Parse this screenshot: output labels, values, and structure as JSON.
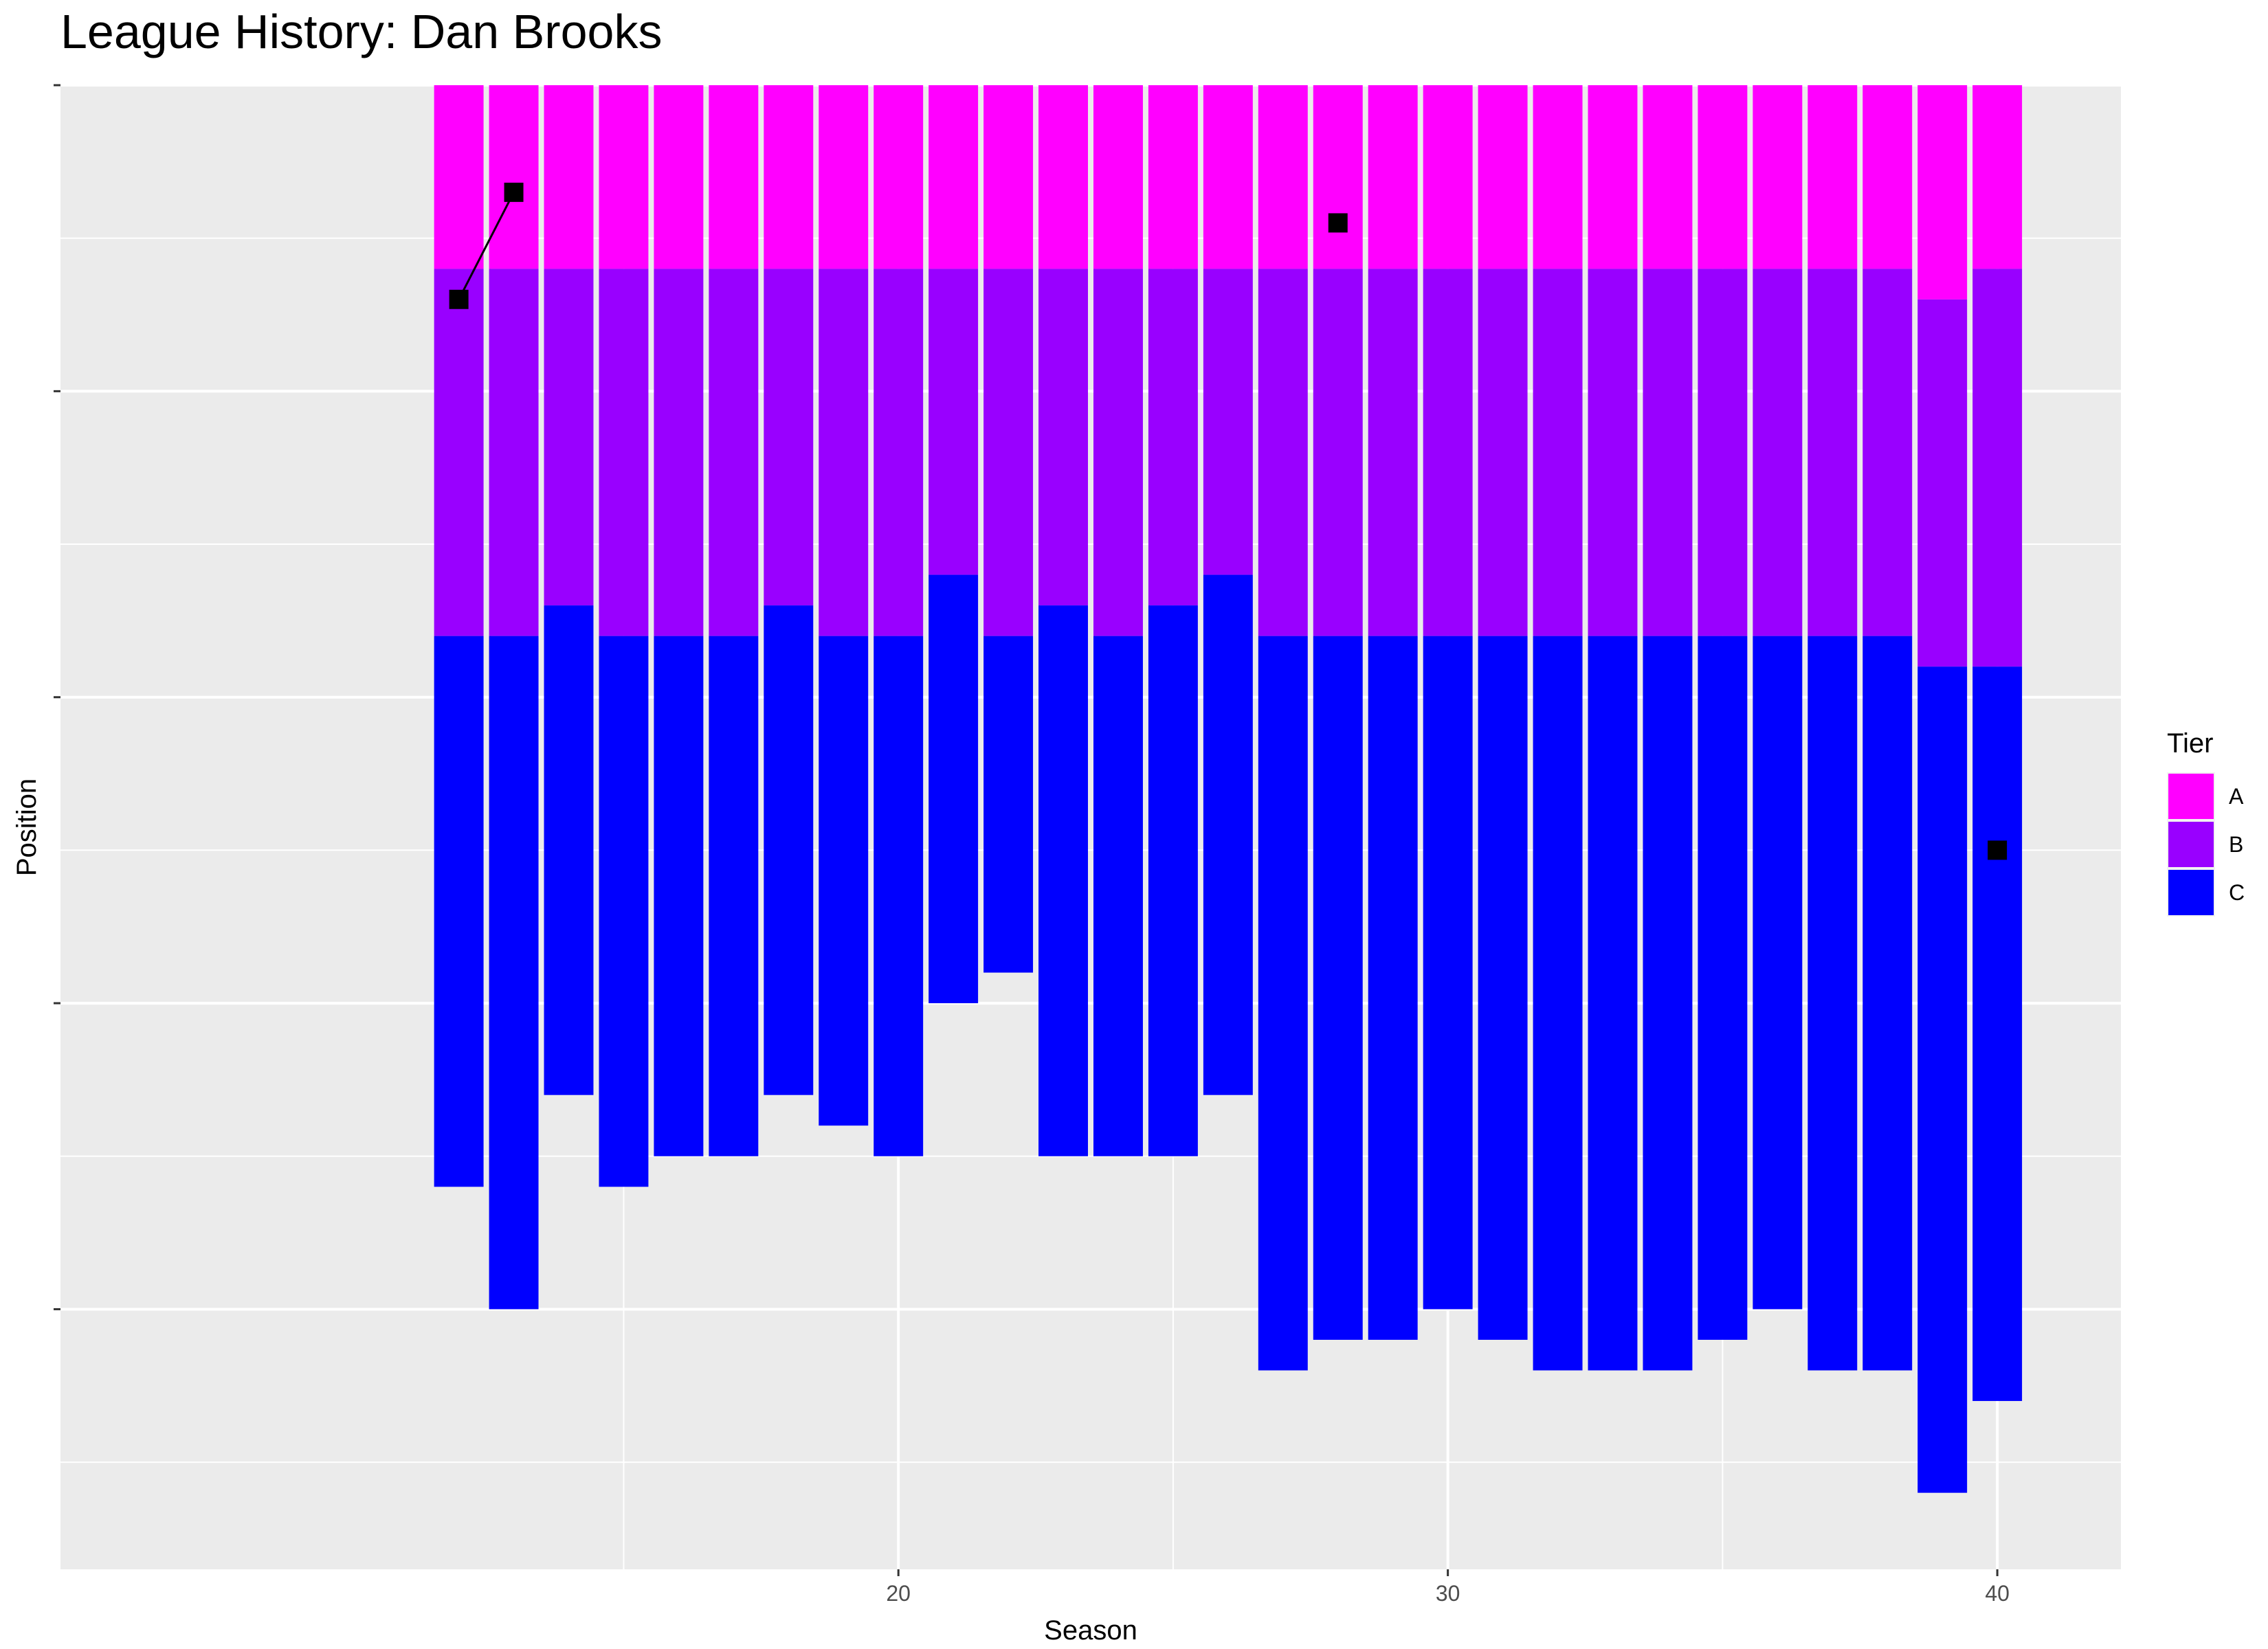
{
  "chart_data": {
    "type": "bar",
    "stacked": true,
    "title": "League History: Dan Brooks",
    "xlabel": "Season",
    "ylabel": "Position",
    "x_ticks": [
      20,
      30,
      40
    ],
    "xlim": [
      4.75,
      42.25
    ],
    "ylim": [
      0,
      48.5
    ],
    "y_reversed": true,
    "grid": true,
    "legend": {
      "title": "Tier",
      "position": "right",
      "entries": [
        "A",
        "B",
        "C"
      ]
    },
    "colors": {
      "A": "#ff00ff",
      "B": "#9900ff",
      "C": "#0000ff",
      "panel": "#ebebeb",
      "grid": "#ffffff",
      "marker": "#000000"
    },
    "seasons": [
      12,
      13,
      14,
      15,
      16,
      17,
      18,
      19,
      20,
      21,
      22,
      23,
      24,
      25,
      26,
      27,
      28,
      29,
      30,
      31,
      32,
      33,
      34,
      35,
      36,
      37,
      38,
      39,
      40
    ],
    "series": [
      {
        "name": "A",
        "values": [
          6,
          6,
          6,
          6,
          6,
          6,
          6,
          6,
          6,
          6,
          6,
          6,
          6,
          6,
          6,
          6,
          6,
          6,
          6,
          6,
          6,
          6,
          6,
          6,
          6,
          6,
          6,
          7,
          6
        ]
      },
      {
        "name": "B",
        "values": [
          12,
          12,
          11,
          12,
          12,
          12,
          11,
          12,
          12,
          10,
          12,
          11,
          12,
          11,
          10,
          12,
          12,
          12,
          12,
          12,
          12,
          12,
          12,
          12,
          12,
          12,
          12,
          12,
          13
        ]
      },
      {
        "name": "C",
        "values": [
          18,
          22,
          16,
          18,
          17,
          17,
          16,
          16,
          17,
          14,
          11,
          18,
          17,
          18,
          17,
          24,
          23,
          23,
          22,
          23,
          24,
          24,
          24,
          23,
          22,
          24,
          24,
          27,
          24
        ]
      }
    ],
    "position_points": [
      {
        "season": 12,
        "position": 7
      },
      {
        "season": 13,
        "position": 3.5
      },
      {
        "season": 28,
        "position": 4.5
      },
      {
        "season": 40,
        "position": 25
      }
    ],
    "position_lines": [
      [
        12,
        13
      ]
    ]
  }
}
